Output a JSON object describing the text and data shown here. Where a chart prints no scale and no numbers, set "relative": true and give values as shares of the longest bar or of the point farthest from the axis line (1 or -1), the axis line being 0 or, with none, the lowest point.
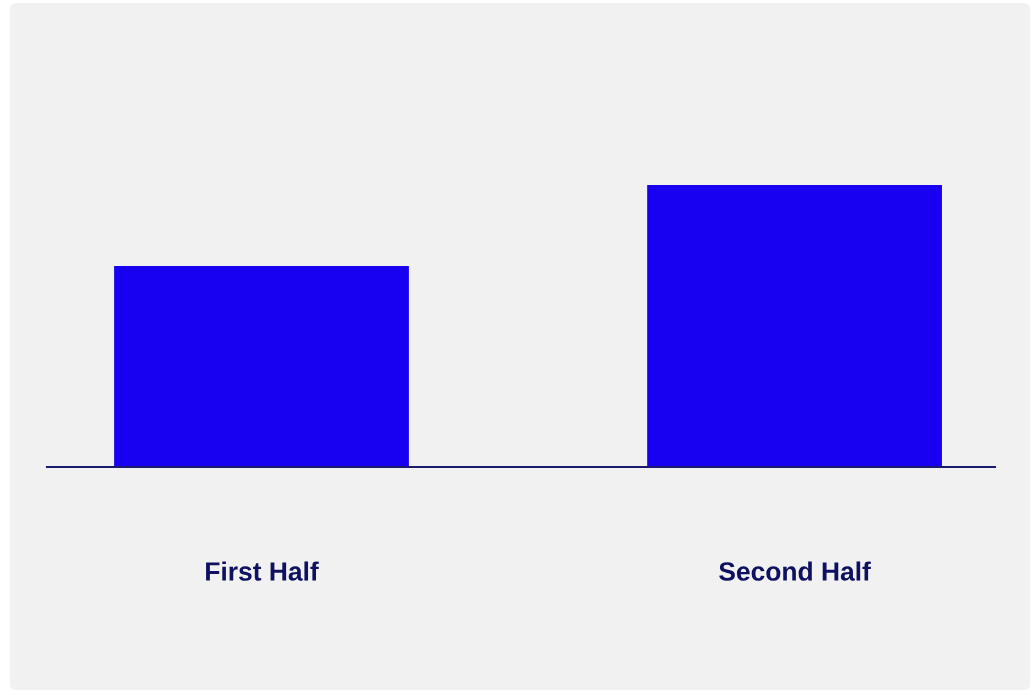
{
  "chart_data": {
    "type": "bar",
    "relative": true,
    "categories": [
      "First Half",
      "Second Half"
    ],
    "values": [
      0.713,
      1
    ],
    "color": "#1800f0"
  }
}
